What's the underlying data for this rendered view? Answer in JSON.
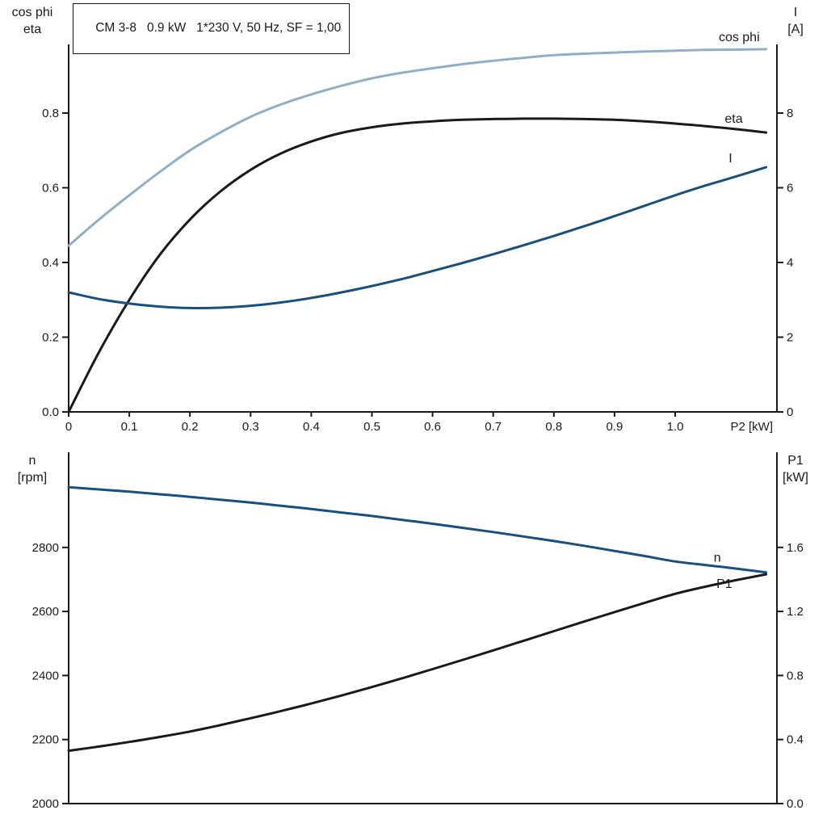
{
  "title": "CM 3-8   0.9 kW   1*230 V, 50 Hz, SF = 1,00",
  "colors": {
    "black": "#1a1a1a",
    "dark_blue": "#17507e",
    "light_blue": "#8fafc9"
  },
  "chart_data": [
    {
      "type": "line",
      "title": "CM 3-8   0.9 kW   1*230 V, 50 Hz, SF = 1,00",
      "x_axis": {
        "label": "P2 [kW]",
        "range": [
          0,
          1.17
        ],
        "ticks": [
          0,
          0.1,
          0.2,
          0.3,
          0.4,
          0.5,
          0.6,
          0.7,
          0.8,
          0.9,
          1.0
        ],
        "tick_labels": [
          "0",
          "0.1",
          "0.2",
          "0.3",
          "0.4",
          "0.5",
          "0.6",
          "0.7",
          "0.8",
          "0.9",
          "1.0"
        ]
      },
      "left_axis": {
        "label_lines": [
          "cos phi",
          "eta"
        ],
        "range": [
          0,
          0.98
        ],
        "ticks": [
          0,
          0.2,
          0.4,
          0.6,
          0.8
        ],
        "tick_labels": [
          "0.0",
          "0.2",
          "0.4",
          "0.6",
          "0.8"
        ]
      },
      "right_axis": {
        "label_lines": [
          "I",
          "[A]"
        ],
        "range": [
          0,
          9.8
        ],
        "ticks": [
          0,
          2,
          4,
          6,
          8
        ],
        "tick_labels": [
          "0",
          "2",
          "4",
          "6",
          "8"
        ]
      },
      "grid": false,
      "series": [
        {
          "name": "cos phi",
          "axis": "left",
          "color": "light_blue",
          "label": {
            "text": "cos phi",
            "anchor": "end",
            "dx": -8,
            "dy": -10
          },
          "x": [
            0,
            0.05,
            0.1,
            0.15,
            0.2,
            0.25,
            0.3,
            0.35,
            0.4,
            0.45,
            0.5,
            0.55,
            0.6,
            0.65,
            0.7,
            0.75,
            0.8,
            0.85,
            0.9,
            0.95,
            1.0,
            1.05,
            1.1,
            1.15
          ],
          "y": [
            0.445,
            0.515,
            0.58,
            0.642,
            0.7,
            0.748,
            0.79,
            0.823,
            0.85,
            0.873,
            0.893,
            0.908,
            0.92,
            0.931,
            0.94,
            0.948,
            0.955,
            0.959,
            0.962,
            0.965,
            0.967,
            0.969,
            0.97,
            0.971
          ]
        },
        {
          "name": "eta",
          "axis": "left",
          "color": "black",
          "label": {
            "text": "eta",
            "anchor": "end",
            "dx": -29,
            "dy": -12
          },
          "x": [
            0,
            0.05,
            0.1,
            0.15,
            0.2,
            0.25,
            0.3,
            0.35,
            0.4,
            0.45,
            0.5,
            0.55,
            0.6,
            0.65,
            0.7,
            0.75,
            0.8,
            0.85,
            0.9,
            0.95,
            1.0,
            1.05,
            1.1,
            1.15
          ],
          "y": [
            0,
            0.16,
            0.3,
            0.42,
            0.515,
            0.59,
            0.648,
            0.692,
            0.724,
            0.747,
            0.762,
            0.772,
            0.778,
            0.782,
            0.784,
            0.785,
            0.785,
            0.784,
            0.782,
            0.778,
            0.772,
            0.765,
            0.757,
            0.748
          ]
        },
        {
          "name": "I",
          "axis": "right",
          "color": "dark_blue",
          "label": {
            "text": "I",
            "anchor": "end",
            "dx": -42,
            "dy": -6
          },
          "x": [
            0,
            0.05,
            0.1,
            0.15,
            0.2,
            0.25,
            0.3,
            0.35,
            0.4,
            0.45,
            0.5,
            0.55,
            0.6,
            0.65,
            0.7,
            0.75,
            0.8,
            0.85,
            0.9,
            0.95,
            1.0,
            1.05,
            1.1,
            1.15
          ],
          "y": [
            3.2,
            3.02,
            2.9,
            2.82,
            2.78,
            2.79,
            2.84,
            2.93,
            3.05,
            3.2,
            3.37,
            3.56,
            3.77,
            3.99,
            4.22,
            4.46,
            4.71,
            4.97,
            5.24,
            5.52,
            5.8,
            6.06,
            6.3,
            6.55
          ]
        }
      ]
    },
    {
      "type": "line",
      "title": "",
      "x_axis": {
        "label": "",
        "range": [
          0,
          1.17
        ],
        "ticks": [],
        "tick_labels": []
      },
      "left_axis": {
        "label_lines": [
          "n",
          "[rpm]"
        ],
        "range": [
          2000,
          3100
        ],
        "ticks": [
          2000,
          2200,
          2400,
          2600,
          2800
        ],
        "tick_labels": [
          "2000",
          "2200",
          "2400",
          "2600",
          "2800"
        ]
      },
      "right_axis": {
        "label_lines": [
          "P1",
          "[kW]"
        ],
        "range": [
          0,
          2.2
        ],
        "ticks": [
          0,
          0.4,
          0.8,
          1.2,
          1.6
        ],
        "tick_labels": [
          "0.0",
          "0.4",
          "0.8",
          "1.2",
          "1.6"
        ]
      },
      "grid": false,
      "series": [
        {
          "name": "n",
          "axis": "left",
          "color": "dark_blue",
          "label": {
            "text": "n",
            "anchor": "end",
            "dx": -56,
            "dy": -13
          },
          "x": [
            0,
            0.05,
            0.1,
            0.15,
            0.2,
            0.25,
            0.3,
            0.35,
            0.4,
            0.45,
            0.5,
            0.55,
            0.6,
            0.65,
            0.7,
            0.75,
            0.8,
            0.85,
            0.9,
            0.95,
            1.0,
            1.05,
            1.1,
            1.15
          ],
          "y": [
            2988,
            2981,
            2974,
            2966,
            2958,
            2949,
            2940,
            2930,
            2920,
            2909,
            2898,
            2886,
            2874,
            2861,
            2848,
            2834,
            2820,
            2805,
            2789,
            2773,
            2756,
            2745,
            2734,
            2722
          ]
        },
        {
          "name": "P1",
          "axis": "right",
          "color": "black",
          "label": {
            "text": "P1",
            "anchor": "end",
            "dx": -42,
            "dy": 17
          },
          "x": [
            0,
            0.05,
            0.1,
            0.15,
            0.2,
            0.25,
            0.3,
            0.35,
            0.4,
            0.45,
            0.5,
            0.55,
            0.6,
            0.65,
            0.7,
            0.75,
            0.8,
            0.85,
            0.9,
            0.95,
            1.0,
            1.05,
            1.1,
            1.15
          ],
          "y": [
            0.33,
            0.356,
            0.385,
            0.416,
            0.45,
            0.49,
            0.533,
            0.578,
            0.625,
            0.675,
            0.728,
            0.783,
            0.84,
            0.898,
            0.957,
            1.017,
            1.077,
            1.137,
            1.196,
            1.254,
            1.31,
            1.355,
            1.395,
            1.432
          ]
        }
      ]
    }
  ]
}
